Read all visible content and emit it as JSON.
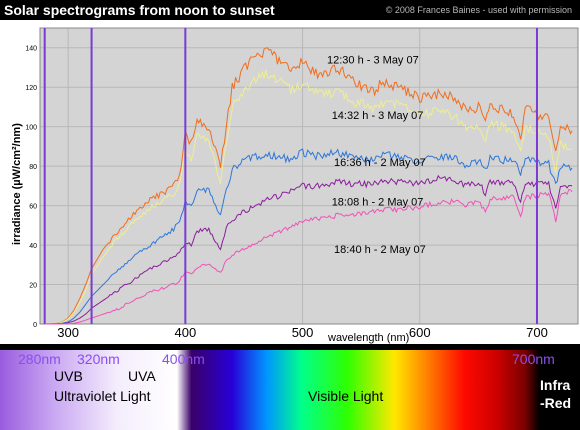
{
  "header": {
    "title": "Solar spectrograms from noon to sunset",
    "credit": "© 2008 Frances Baines - used with permission"
  },
  "chart_data": {
    "type": "line",
    "xlabel": "wavelength (nm)",
    "ylabel": "irradiance (µW/cm²/nm)",
    "xlim": [
      276,
      735
    ],
    "ylim": [
      0,
      150
    ],
    "x_ticks": [
      300,
      400,
      500,
      600,
      700
    ],
    "y_ticks": [
      0,
      20,
      40,
      60,
      80,
      100,
      120,
      140
    ],
    "grid": true,
    "vertical_markers": [
      280,
      320,
      400,
      700
    ],
    "x": [
      280,
      290,
      295,
      300,
      305,
      310,
      315,
      320,
      330,
      340,
      350,
      360,
      370,
      380,
      390,
      395,
      400,
      405,
      410,
      420,
      430,
      435,
      440,
      450,
      460,
      470,
      480,
      490,
      500,
      510,
      520,
      530,
      540,
      550,
      560,
      570,
      580,
      590,
      600,
      610,
      620,
      630,
      640,
      650,
      656,
      660,
      670,
      680,
      686,
      690,
      700,
      710,
      716,
      720,
      730
    ],
    "series": [
      {
        "name": "12:30 h - 3 May 07",
        "color": "#f26d1d",
        "values": [
          0,
          0.3,
          1,
          3,
          7,
          13,
          20,
          28,
          38,
          45,
          52,
          58,
          63,
          66,
          70,
          74,
          96,
          92,
          103,
          100,
          80,
          100,
          120,
          129,
          135,
          138,
          134,
          128,
          133,
          127,
          126,
          130,
          124,
          121,
          118,
          123,
          120,
          118,
          114,
          116,
          117,
          114,
          108,
          110,
          102,
          110,
          109,
          106,
          94,
          110,
          106,
          104,
          86,
          100,
          98
        ]
      },
      {
        "name": "14:32 h - 3 May 07",
        "color": "#eeee94",
        "values": [
          0,
          0.2,
          0.8,
          2.5,
          6,
          11,
          17,
          25,
          34,
          42,
          48,
          54,
          59,
          62,
          66,
          70,
          88,
          84,
          95,
          92,
          72,
          92,
          110,
          118,
          124,
          127,
          124,
          118,
          122,
          117,
          116,
          118,
          113,
          112,
          109,
          113,
          111,
          109,
          106,
          107,
          108,
          105,
          99,
          101,
          92,
          101,
          100,
          97,
          86,
          100,
          97,
          95,
          78,
          91,
          89
        ]
      },
      {
        "name": "16:36 h - 2 May 07",
        "color": "#2f76d8",
        "values": [
          0,
          0.1,
          0.4,
          1,
          3,
          6,
          10,
          14,
          20,
          26,
          31,
          36,
          40,
          44,
          48,
          52,
          62,
          60,
          68,
          68,
          55,
          68,
          78,
          83,
          85,
          86,
          85,
          83,
          87,
          85,
          86,
          87,
          85,
          84,
          83,
          86,
          85,
          84,
          82,
          84,
          85,
          84,
          80,
          83,
          78,
          84,
          83,
          83,
          76,
          83,
          82,
          81,
          70,
          80,
          79
        ]
      },
      {
        "name": "18:08 h - 2 May 07",
        "color": "#8a1f9a",
        "values": [
          0,
          0.05,
          0.2,
          0.6,
          1.5,
          3,
          5,
          8,
          12,
          16,
          20,
          24,
          28,
          31,
          34,
          37,
          41,
          40,
          47,
          48,
          37,
          49,
          53,
          57,
          60,
          63,
          65,
          67,
          70,
          70,
          71,
          72,
          71,
          71,
          71,
          73,
          72,
          72,
          71,
          73,
          74,
          73,
          70,
          72,
          66,
          72,
          72,
          71,
          62,
          71,
          71,
          71,
          58,
          70,
          70
        ]
      },
      {
        "name": "18:40 h - 2 May 07",
        "color": "#f052b8",
        "values": [
          0,
          0.02,
          0.05,
          0.1,
          0.3,
          1,
          2,
          3,
          5,
          7,
          10,
          13,
          16,
          18,
          20,
          22,
          26,
          25,
          28,
          31,
          26,
          32,
          35,
          38,
          41,
          44,
          47,
          49,
          52,
          53,
          54,
          55,
          55,
          56,
          57,
          58,
          58,
          59,
          59,
          61,
          62,
          62,
          60,
          63,
          56,
          63,
          64,
          64,
          55,
          64,
          65,
          66,
          52,
          66,
          67
        ]
      }
    ],
    "annotations": [
      {
        "text": "12:30 h - 3 May 07",
        "x": 560,
        "y": 134
      },
      {
        "text": "14:32 h - 3 May 07",
        "x": 564,
        "y": 106
      },
      {
        "text": "16:36 h - 2 May 07",
        "x": 566,
        "y": 82
      },
      {
        "text": "18:08 h - 2 May 07",
        "x": 564,
        "y": 62
      },
      {
        "text": "18:40 h - 2 May 07",
        "x": 566,
        "y": 38
      }
    ]
  },
  "strip": {
    "labels": {
      "nm280": "280nm",
      "nm320": "320nm",
      "nm400": "400nm",
      "nm700": "700nm",
      "uvb": "UVB",
      "uva": "UVA",
      "ultraviolet": "Ultraviolet Light",
      "visible": "Visible Light",
      "infra1": "Infra",
      "infra2": "-Red"
    }
  },
  "colors": {
    "plot_background": "#d4d4d4",
    "marker_line": "#7a3bd4",
    "nm_label": "#8a4ef0",
    "axis_text": "#000000"
  }
}
